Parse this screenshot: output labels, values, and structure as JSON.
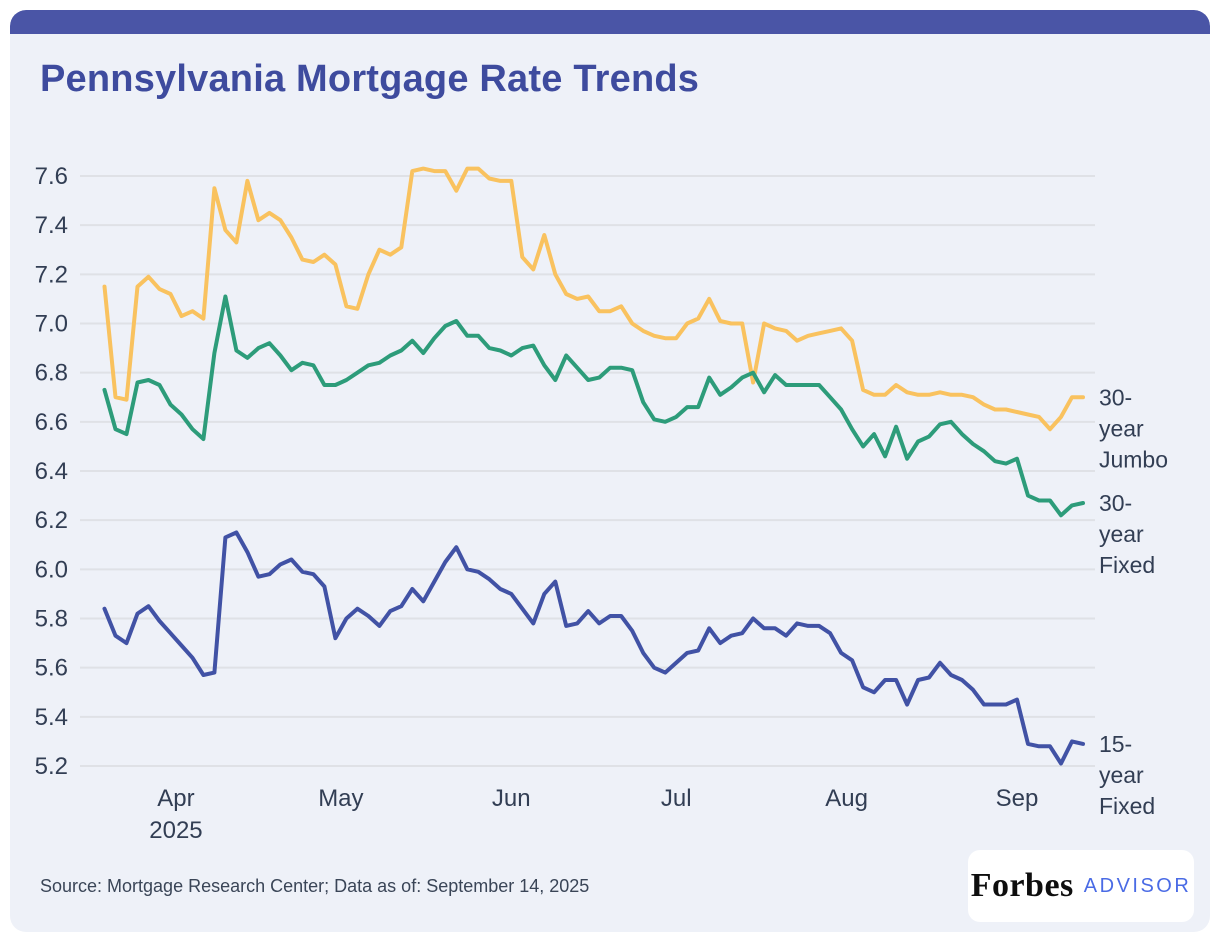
{
  "header": {
    "title": "Pennsylvania Mortgage Rate Trends"
  },
  "footer": {
    "source": "Source: Mortgage Research Center; Data as of: September 14, 2025",
    "brand": "Forbes",
    "brand_suffix": "ADVISOR"
  },
  "colors": {
    "accent_bar": "#4A55A6",
    "title_text": "#3E4B9E",
    "card_bg": "#EEF1F8",
    "grid": "#DFE1E6",
    "tick_text": "#323E54",
    "jumbo_30yr": "#F9C25F",
    "fixed_30yr": "#2D9C7A",
    "fixed_15yr": "#4152A5",
    "advisor_text": "#4A6BE5",
    "forbes_text": "#0E0E0E"
  },
  "chart_data": {
    "type": "line",
    "title": "Pennsylvania Mortgage Rate Trends",
    "grid": "horizontal-only",
    "legend_position": "right-end-labels",
    "ylim": [
      5.2,
      7.6
    ],
    "y_ticks": [
      "7.6",
      "7.4",
      "7.2",
      "7.0",
      "6.8",
      "6.6",
      "6.4",
      "6.2",
      "6.0",
      "5.8",
      "5.6",
      "5.4",
      "5.2"
    ],
    "x_unit": "days-from-2025-03-19",
    "x_step": 2,
    "x_ticks": [
      {
        "label": "Apr",
        "sublabel": "2025",
        "day": 13
      },
      {
        "label": "May",
        "day": 43
      },
      {
        "label": "Jun",
        "day": 74
      },
      {
        "label": "Jul",
        "day": 104
      },
      {
        "label": "Aug",
        "day": 135
      },
      {
        "label": "Sep",
        "day": 166
      }
    ],
    "series": [
      {
        "name": "30-year Jumbo",
        "label_lines": [
          "30-",
          "year",
          "Jumbo"
        ],
        "color": "#F9C25F",
        "values": [
          7.15,
          6.7,
          6.69,
          7.15,
          7.19,
          7.14,
          7.12,
          7.03,
          7.05,
          7.02,
          7.55,
          7.38,
          7.33,
          7.58,
          7.42,
          7.45,
          7.42,
          7.35,
          7.26,
          7.25,
          7.28,
          7.24,
          7.07,
          7.06,
          7.2,
          7.3,
          7.28,
          7.31,
          7.62,
          7.63,
          7.62,
          7.62,
          7.54,
          7.63,
          7.63,
          7.59,
          7.58,
          7.58,
          7.27,
          7.22,
          7.36,
          7.2,
          7.12,
          7.1,
          7.11,
          7.05,
          7.05,
          7.07,
          7.0,
          6.97,
          6.95,
          6.94,
          6.94,
          7.0,
          7.02,
          7.1,
          7.01,
          7.0,
          7.0,
          6.76,
          7.0,
          6.98,
          6.97,
          6.93,
          6.95,
          6.96,
          6.97,
          6.98,
          6.93,
          6.73,
          6.71,
          6.71,
          6.75,
          6.72,
          6.71,
          6.71,
          6.72,
          6.71,
          6.71,
          6.7,
          6.67,
          6.65,
          6.65,
          6.64,
          6.63,
          6.62,
          6.57,
          6.62,
          6.7,
          6.7
        ]
      },
      {
        "name": "30-year Fixed",
        "label_lines": [
          "30-",
          "year",
          "Fixed"
        ],
        "color": "#2D9C7A",
        "values": [
          6.73,
          6.57,
          6.55,
          6.76,
          6.77,
          6.75,
          6.67,
          6.63,
          6.57,
          6.53,
          6.88,
          7.11,
          6.89,
          6.86,
          6.9,
          6.92,
          6.87,
          6.81,
          6.84,
          6.83,
          6.75,
          6.75,
          6.77,
          6.8,
          6.83,
          6.84,
          6.87,
          6.89,
          6.93,
          6.88,
          6.94,
          6.99,
          7.01,
          6.95,
          6.95,
          6.9,
          6.89,
          6.87,
          6.9,
          6.91,
          6.83,
          6.77,
          6.87,
          6.82,
          6.77,
          6.78,
          6.82,
          6.82,
          6.81,
          6.68,
          6.61,
          6.6,
          6.62,
          6.66,
          6.66,
          6.78,
          6.71,
          6.74,
          6.78,
          6.8,
          6.72,
          6.79,
          6.75,
          6.75,
          6.75,
          6.75,
          6.7,
          6.65,
          6.57,
          6.5,
          6.55,
          6.46,
          6.58,
          6.45,
          6.52,
          6.54,
          6.59,
          6.6,
          6.55,
          6.51,
          6.48,
          6.44,
          6.43,
          6.45,
          6.3,
          6.28,
          6.28,
          6.22,
          6.26,
          6.27
        ]
      },
      {
        "name": "15-year Fixed",
        "label_lines": [
          "15-",
          "year",
          "Fixed"
        ],
        "color": "#4152A5",
        "values": [
          5.84,
          5.73,
          5.7,
          5.82,
          5.85,
          5.79,
          5.74,
          5.69,
          5.64,
          5.57,
          5.58,
          6.13,
          6.15,
          6.07,
          5.97,
          5.98,
          6.02,
          6.04,
          5.99,
          5.98,
          5.93,
          5.72,
          5.8,
          5.84,
          5.81,
          5.77,
          5.83,
          5.85,
          5.92,
          5.87,
          5.95,
          6.03,
          6.09,
          6.0,
          5.99,
          5.96,
          5.92,
          5.9,
          5.84,
          5.78,
          5.9,
          5.95,
          5.77,
          5.78,
          5.83,
          5.78,
          5.81,
          5.81,
          5.75,
          5.66,
          5.6,
          5.58,
          5.62,
          5.66,
          5.67,
          5.76,
          5.7,
          5.73,
          5.74,
          5.8,
          5.76,
          5.76,
          5.73,
          5.78,
          5.77,
          5.77,
          5.74,
          5.66,
          5.63,
          5.52,
          5.5,
          5.55,
          5.55,
          5.45,
          5.55,
          5.56,
          5.62,
          5.57,
          5.55,
          5.51,
          5.45,
          5.45,
          5.45,
          5.47,
          5.29,
          5.28,
          5.28,
          5.21,
          5.3,
          5.29
        ]
      }
    ]
  }
}
